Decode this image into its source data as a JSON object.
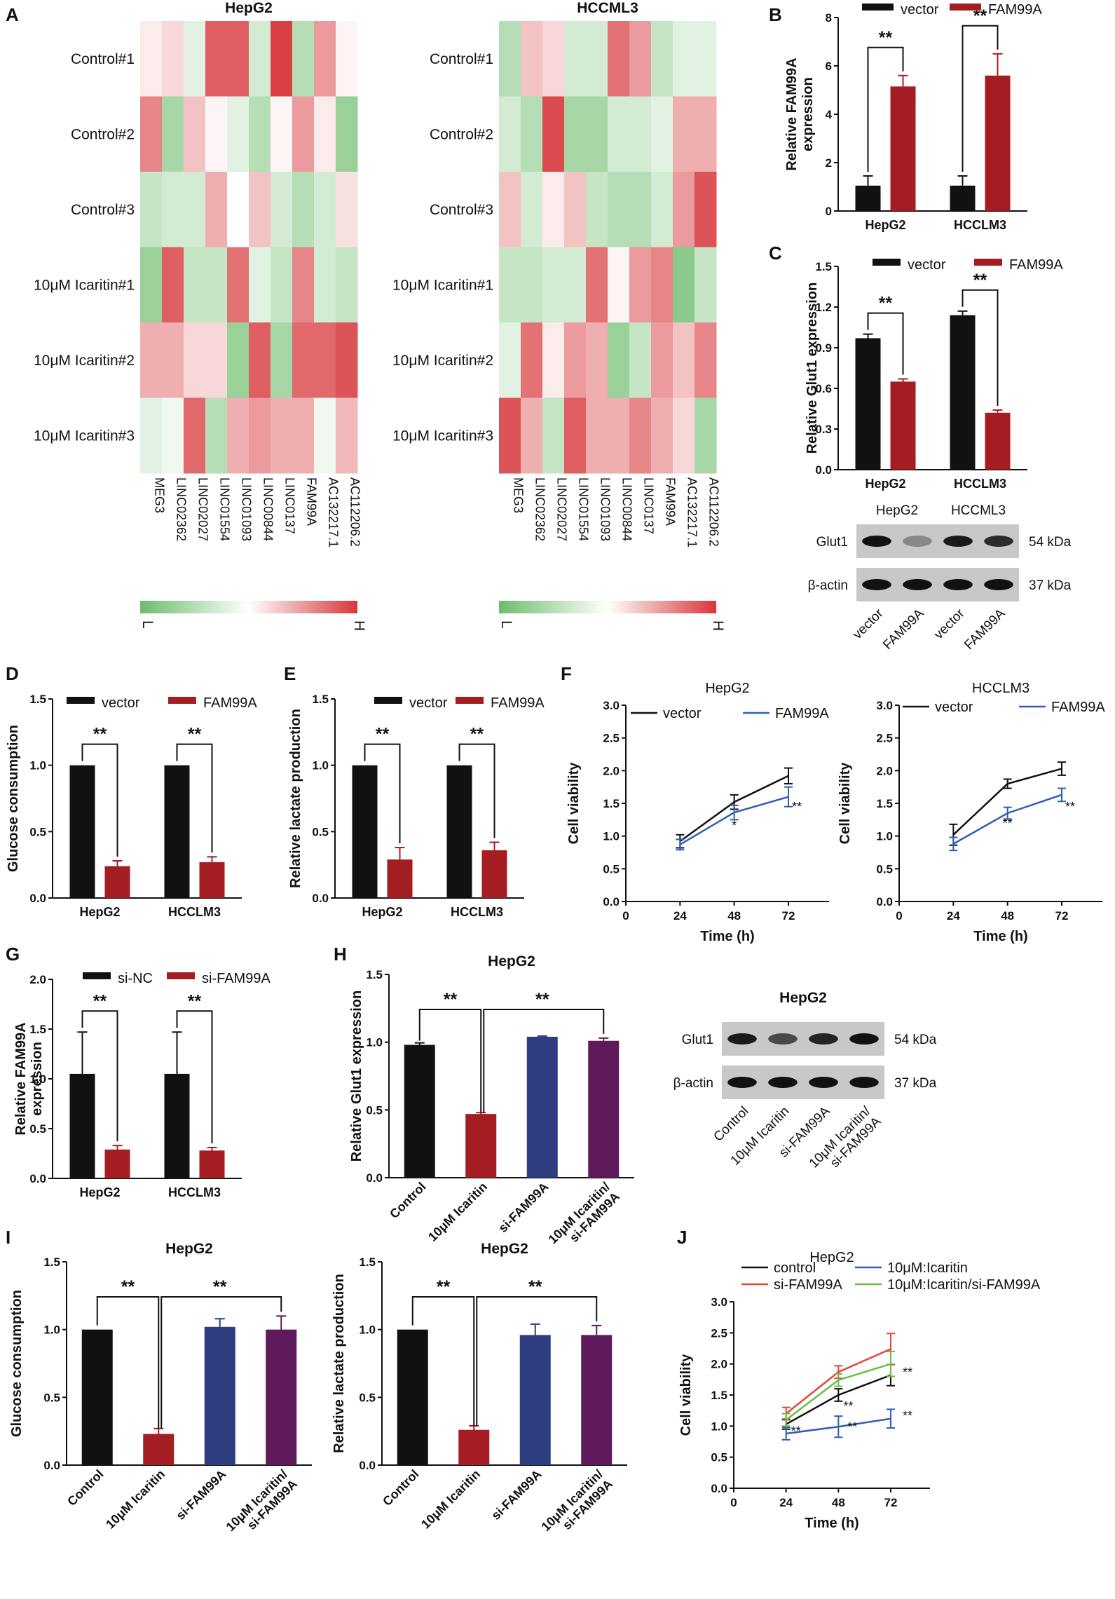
{
  "colors": {
    "black": "#111111",
    "red": "#a31d22",
    "blue": "#2d3d80",
    "purple": "#5e1a5a",
    "line_blue": "#2f5fb3",
    "line_red": "#e8423d",
    "line_green": "#69bd45",
    "heat_low": "#6dbd6d",
    "heat_mid": "#ffffff",
    "heat_high": "#d7363a"
  },
  "chart_data": [
    {
      "id": "A",
      "panel": "A",
      "type": "heatmap",
      "title": "HepG2",
      "rows": [
        "Control#1",
        "Control#2",
        "Control#3",
        "10μM Icaritin#1",
        "10μM Icaritin#2",
        "10μM Icaritin#3"
      ],
      "columns": [
        "MEG3",
        "LINC02362",
        "LINC02027",
        "LINC01554",
        "LINC01093",
        "LINC00844",
        "LINC0137",
        "FAM99A",
        "AC132217.1",
        "AC112206.2"
      ],
      "values": [
        [
          0.1,
          0.2,
          -0.2,
          0.8,
          0.8,
          -0.3,
          0.95,
          -0.5,
          0.5,
          0.05
        ],
        [
          0.6,
          -0.6,
          0.3,
          0.05,
          -0.2,
          -0.5,
          0.05,
          0.5,
          0.1,
          -0.7
        ],
        [
          -0.4,
          -0.3,
          -0.3,
          0.4,
          0.0,
          0.3,
          -0.3,
          -0.5,
          -0.3,
          0.15
        ],
        [
          -0.7,
          0.8,
          -0.4,
          -0.4,
          0.7,
          -0.2,
          -0.4,
          0.6,
          -0.3,
          -0.4
        ],
        [
          0.4,
          0.4,
          0.2,
          0.2,
          -0.7,
          0.8,
          -0.6,
          0.75,
          0.75,
          0.85
        ],
        [
          -0.2,
          -0.1,
          0.75,
          -0.5,
          0.4,
          0.5,
          0.4,
          0.4,
          -0.1,
          0.35
        ]
      ],
      "scale_low": "L",
      "scale_high": "H"
    },
    {
      "id": "A2",
      "panel": "",
      "type": "heatmap",
      "title": "HCCML3",
      "rows": [
        "Control#1",
        "Control#2",
        "Control#3",
        "10μM Icaritin#1",
        "10μM Icaritin#2",
        "10μM Icaritin#3"
      ],
      "columns": [
        "MEG3",
        "LINC02362",
        "LINC02027",
        "LINC01554",
        "LINC01093",
        "LINC00844",
        "LINC0137",
        "FAM99A",
        "AC132217.1",
        "AC112206.2"
      ],
      "values": [
        [
          -0.5,
          0.3,
          0.2,
          -0.3,
          -0.3,
          0.7,
          0.5,
          -0.4,
          -0.2,
          -0.2
        ],
        [
          -0.3,
          -0.5,
          0.9,
          -0.6,
          -0.6,
          -0.3,
          -0.3,
          -0.2,
          0.4,
          0.4
        ],
        [
          0.3,
          -0.3,
          0.1,
          0.3,
          -0.4,
          -0.5,
          -0.5,
          -0.3,
          0.5,
          0.85
        ],
        [
          -0.4,
          -0.4,
          -0.3,
          -0.3,
          0.7,
          0.05,
          0.5,
          0.6,
          -0.8,
          -0.4
        ],
        [
          -0.2,
          0.7,
          0.1,
          0.5,
          0.4,
          -0.7,
          -0.4,
          0.5,
          0.3,
          0.6
        ],
        [
          0.85,
          0.4,
          -0.4,
          0.8,
          0.4,
          0.4,
          0.6,
          0.4,
          0.2,
          -0.6
        ]
      ],
      "scale_low": "L",
      "scale_high": "H"
    },
    {
      "id": "B",
      "panel": "B",
      "type": "bar",
      "title": "",
      "categories": [
        "HepG2",
        "HCCLM3"
      ],
      "series": [
        {
          "name": "vector",
          "color": "#111111",
          "values": [
            1.05,
            1.05
          ],
          "errors": [
            0.4,
            0.4
          ]
        },
        {
          "name": "FAM99A",
          "color": "#a31d22",
          "values": [
            5.15,
            5.6
          ],
          "errors": [
            0.45,
            0.9
          ]
        }
      ],
      "ylabel": "Relative FAM99A expression",
      "ylim": [
        0,
        8
      ],
      "yticks": [
        "0",
        "2",
        "4",
        "6",
        "8"
      ],
      "significance": [
        "**",
        "**"
      ]
    },
    {
      "id": "C",
      "panel": "C",
      "type": "bar",
      "title": "",
      "categories": [
        "HepG2",
        "HCCLM3"
      ],
      "series": [
        {
          "name": "vector",
          "color": "#111111",
          "values": [
            0.97,
            1.14
          ],
          "errors": [
            0.03,
            0.03
          ]
        },
        {
          "name": "FAM99A",
          "color": "#a31d22",
          "values": [
            0.65,
            0.42
          ],
          "errors": [
            0.02,
            0.02
          ]
        }
      ],
      "ylabel": "Relative Glut1 expression",
      "ylim": [
        0,
        1.5
      ],
      "yticks": [
        "0.0",
        "0.3",
        "0.6",
        "0.9",
        "1.2",
        "1.5"
      ],
      "significance": [
        "**",
        "**"
      ]
    },
    {
      "id": "D",
      "panel": "D",
      "type": "bar",
      "title": "",
      "categories": [
        "HepG2",
        "HCCLM3"
      ],
      "series": [
        {
          "name": "vector",
          "color": "#111111",
          "values": [
            1.0,
            1.0
          ],
          "errors": [
            0,
            0
          ]
        },
        {
          "name": "FAM99A",
          "color": "#a31d22",
          "values": [
            0.24,
            0.27
          ],
          "errors": [
            0.04,
            0.04
          ]
        }
      ],
      "ylabel": "Glucose consumption",
      "ylim": [
        0,
        1.5
      ],
      "yticks": [
        "0.0",
        "0.5",
        "1.0",
        "1.5"
      ],
      "significance": [
        "**",
        "**"
      ]
    },
    {
      "id": "E",
      "panel": "E",
      "type": "bar",
      "title": "",
      "categories": [
        "HepG2",
        "HCCLM3"
      ],
      "series": [
        {
          "name": "vector",
          "color": "#111111",
          "values": [
            1.0,
            1.0
          ],
          "errors": [
            0,
            0
          ]
        },
        {
          "name": "FAM99A",
          "color": "#a31d22",
          "values": [
            0.29,
            0.36
          ],
          "errors": [
            0.09,
            0.06
          ]
        }
      ],
      "ylabel": "Relative lactate production",
      "ylim": [
        0,
        1.5
      ],
      "yticks": [
        "0.0",
        "0.5",
        "1.0",
        "1.5"
      ],
      "significance": [
        "**",
        "**"
      ]
    },
    {
      "id": "F1",
      "panel": "F",
      "type": "line",
      "title": "HepG2",
      "x": [
        24,
        48,
        72
      ],
      "xticks": [
        "0",
        "24",
        "48",
        "72"
      ],
      "xlim": [
        0,
        90
      ],
      "series": [
        {
          "name": "vector",
          "color": "#111111",
          "values": [
            0.92,
            1.52,
            1.92
          ],
          "errors": [
            0.1,
            0.11,
            0.12
          ]
        },
        {
          "name": "FAM99A",
          "color": "#2f5fb3",
          "values": [
            0.87,
            1.36,
            1.6
          ],
          "errors": [
            0.08,
            0.11,
            0.15
          ]
        }
      ],
      "ylabel": "Cell viability",
      "xlabel": "Time (h)",
      "ylim": [
        0,
        3
      ],
      "yticks": [
        "0.0",
        "0.5",
        "1.0",
        "1.5",
        "2.0",
        "2.5",
        "3.0"
      ],
      "annotations": [
        {
          "x": 48,
          "text": "*"
        },
        {
          "x": 72,
          "text": "**"
        }
      ]
    },
    {
      "id": "F2",
      "panel": "",
      "type": "line",
      "title": "HCCLM3",
      "x": [
        24,
        48,
        72
      ],
      "xticks": [
        "0",
        "24",
        "48",
        "72"
      ],
      "xlim": [
        0,
        90
      ],
      "series": [
        {
          "name": "vector",
          "color": "#111111",
          "values": [
            1.02,
            1.8,
            2.03
          ],
          "errors": [
            0.16,
            0.07,
            0.1
          ]
        },
        {
          "name": "FAM99A",
          "color": "#2f5fb3",
          "values": [
            0.88,
            1.35,
            1.63
          ],
          "errors": [
            0.1,
            0.09,
            0.1
          ]
        }
      ],
      "ylabel": "Cell viability",
      "xlabel": "Time (h)",
      "ylim": [
        0,
        3
      ],
      "yticks": [
        "0.0",
        "0.5",
        "1.0",
        "1.5",
        "2.0",
        "2.5",
        "3.0"
      ],
      "annotations": [
        {
          "x": 48,
          "text": "**"
        },
        {
          "x": 72,
          "text": "**"
        }
      ]
    },
    {
      "id": "G",
      "panel": "G",
      "type": "bar",
      "title": "",
      "categories": [
        "HepG2",
        "HCCLM3"
      ],
      "series": [
        {
          "name": "si-NC",
          "color": "#111111",
          "values": [
            1.05,
            1.05
          ],
          "errors": [
            0.42,
            0.42
          ]
        },
        {
          "name": "si-FAM99A",
          "color": "#a31d22",
          "values": [
            0.29,
            0.28
          ],
          "errors": [
            0.04,
            0.03
          ]
        }
      ],
      "ylabel": "Relative FAM99A expression",
      "ylim": [
        0,
        2
      ],
      "yticks": [
        "0.0",
        "0.5",
        "1.0",
        "1.5",
        "2.0"
      ],
      "significance": [
        "**",
        "**"
      ]
    },
    {
      "id": "H",
      "panel": "H",
      "type": "bar",
      "title": "HepG2",
      "categories": [
        "Control",
        "10μM Icaritin",
        "si-FAM99A",
        "10μM Icaritin/ si-FAM99A"
      ],
      "values": [
        0.98,
        0.47,
        1.04,
        1.01
      ],
      "errors": [
        0.015,
        0.01,
        0.005,
        0.02
      ],
      "colors": [
        "#111111",
        "#a31d22",
        "#2d3d80",
        "#5e1a5a"
      ],
      "ylabel": "Relative Glut1 expression",
      "ylim": [
        0,
        1.5
      ],
      "yticks": [
        "0.0",
        "0.5",
        "1.0",
        "1.5"
      ],
      "significance": [
        "**",
        "**"
      ]
    },
    {
      "id": "I1",
      "panel": "I",
      "type": "bar",
      "title": "HepG2",
      "categories": [
        "Control",
        "10μM Icaritin",
        "si-FAM99A",
        "10μM Icaritin/ si-FAM99A"
      ],
      "values": [
        1.0,
        0.23,
        1.02,
        1.0
      ],
      "errors": [
        0,
        0.04,
        0.06,
        0.1
      ],
      "colors": [
        "#111111",
        "#a31d22",
        "#2d3d80",
        "#5e1a5a"
      ],
      "ylabel": "Glucose consumption",
      "ylim": [
        0,
        1.5
      ],
      "yticks": [
        "0.0",
        "0.5",
        "1.0",
        "1.5"
      ],
      "significance": [
        "**",
        "**"
      ]
    },
    {
      "id": "I2",
      "panel": "",
      "type": "bar",
      "title": "HepG2",
      "categories": [
        "Control",
        "10μM Icaritin",
        "si-FAM99A",
        "10μM Icaritin/ si-FAM99A"
      ],
      "values": [
        1.0,
        0.26,
        0.96,
        0.96
      ],
      "errors": [
        0,
        0.03,
        0.08,
        0.07
      ],
      "colors": [
        "#111111",
        "#a31d22",
        "#2d3d80",
        "#5e1a5a"
      ],
      "ylabel": "Relative lactate production",
      "ylim": [
        0,
        1.5
      ],
      "yticks": [
        "0.0",
        "0.5",
        "1.0",
        "1.5"
      ],
      "significance": [
        "**",
        "**"
      ]
    },
    {
      "id": "J",
      "panel": "J",
      "type": "line",
      "title": "HepG2",
      "x": [
        24,
        48,
        72
      ],
      "xticks": [
        "0",
        "24",
        "48",
        "72"
      ],
      "xlim": [
        0,
        90
      ],
      "series": [
        {
          "name": "control",
          "color": "#111111",
          "values": [
            1.03,
            1.5,
            1.82
          ],
          "errors": [
            0.08,
            0.1,
            0.17
          ]
        },
        {
          "name": "10μM:Icaritin",
          "color": "#2f5fb3",
          "values": [
            0.88,
            0.99,
            1.12
          ],
          "errors": [
            0.1,
            0.17,
            0.15
          ]
        },
        {
          "name": "si-FAM99A",
          "color": "#e8423d",
          "values": [
            1.2,
            1.87,
            2.24
          ],
          "errors": [
            0.1,
            0.1,
            0.25
          ]
        },
        {
          "name": "10μM:Icaritin/si-FAM99A",
          "color": "#69bd45",
          "values": [
            1.1,
            1.74,
            2.0
          ],
          "errors": [
            0.1,
            0.1,
            0.2
          ]
        }
      ],
      "ylabel": "Cell viability",
      "xlabel": "Time (h)",
      "ylim": [
        0,
        3
      ],
      "yticks": [
        "0.0",
        "0.5",
        "1.0",
        "1.5",
        "2.0",
        "2.5",
        "3.0"
      ],
      "annotations": [
        {
          "x": 24,
          "text": "**"
        },
        {
          "x": 48,
          "text": "**"
        },
        {
          "x": 48,
          "text": "**"
        },
        {
          "x": 72,
          "text": "**"
        },
        {
          "x": 72,
          "text": "**"
        }
      ]
    }
  ],
  "blots": {
    "C": {
      "cell_lines": [
        "HepG2",
        "HCCML3"
      ],
      "bands": [
        "Glut1",
        "β-actin"
      ],
      "sizes": [
        "54 kDa",
        "37 kDa"
      ],
      "lanes": [
        "vector",
        "FAM99A",
        "vector",
        "FAM99A"
      ],
      "intensity": [
        [
          1.0,
          0.35,
          0.95,
          0.85
        ],
        [
          1.0,
          1.0,
          1.0,
          1.0
        ]
      ]
    },
    "H": {
      "title": "HepG2",
      "bands": [
        "Glut1",
        "β-actin"
      ],
      "sizes": [
        "54 kDa",
        "37 kDa"
      ],
      "lanes": [
        "Control",
        "10μM Icaritin",
        "si-FAM99A",
        "10μM Icaritin/ si-FAM99A"
      ],
      "intensity": [
        [
          0.95,
          0.7,
          0.9,
          1.0
        ],
        [
          1.0,
          1.0,
          1.0,
          1.0
        ]
      ]
    }
  }
}
